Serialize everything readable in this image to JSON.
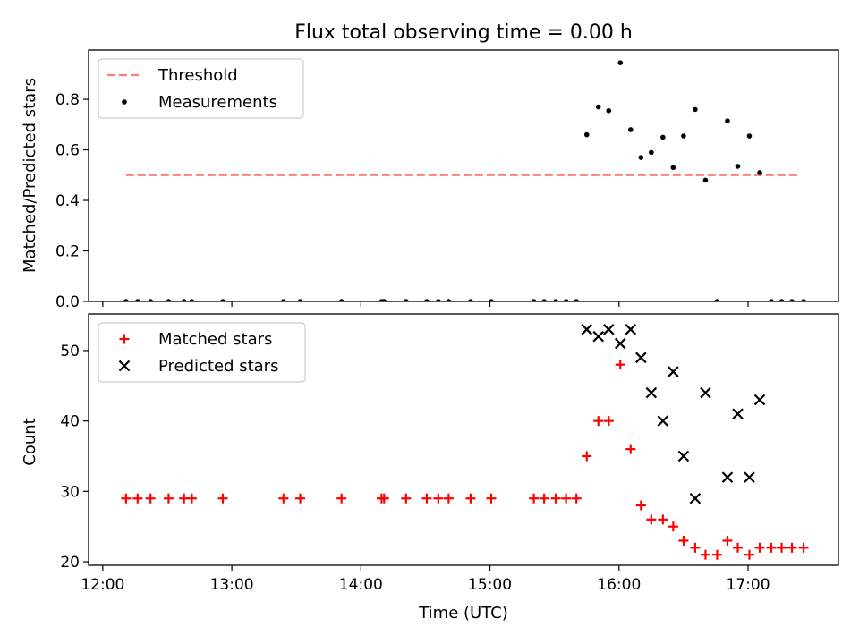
{
  "chart_data": {
    "title": "Flux total observing time = 0.00 h",
    "xlabel": "Time (UTC)",
    "x_unit": "hours UTC",
    "x_ticks": [
      12,
      13,
      14,
      15,
      16,
      17
    ],
    "x_tick_labels": [
      "12:00",
      "13:00",
      "14:00",
      "15:00",
      "16:00",
      "17:00"
    ],
    "xlim": [
      11.89,
      17.7
    ],
    "panels": [
      {
        "type": "scatter",
        "ylabel": "Matched/Predicted stars",
        "ylim": [
          0,
          0.995
        ],
        "y_ticks": [
          0,
          0.2,
          0.4,
          0.6,
          0.8
        ],
        "y_tick_labels": [
          "0.0",
          "0.2",
          "0.4",
          "0.6",
          "0.8"
        ],
        "legend_position": "top-left",
        "lines": [
          {
            "name": "Threshold",
            "style": "dashed",
            "color": "#ff7f7f",
            "x": [
              12.18,
              17.4
            ],
            "y": [
              0.5,
              0.5
            ]
          }
        ],
        "series": [
          {
            "name": "Measurements",
            "marker": "dot",
            "color": "#000000",
            "points": [
              [
                12.18,
                0
              ],
              [
                12.27,
                0
              ],
              [
                12.37,
                0
              ],
              [
                12.51,
                0
              ],
              [
                12.63,
                0
              ],
              [
                12.69,
                0
              ],
              [
                12.93,
                0
              ],
              [
                13.4,
                0
              ],
              [
                13.53,
                0
              ],
              [
                13.85,
                0
              ],
              [
                14.16,
                0
              ],
              [
                14.18,
                0
              ],
              [
                14.35,
                0
              ],
              [
                14.51,
                0
              ],
              [
                14.6,
                0
              ],
              [
                14.68,
                0
              ],
              [
                14.85,
                0
              ],
              [
                15.01,
                0
              ],
              [
                15.34,
                0
              ],
              [
                15.42,
                0
              ],
              [
                15.51,
                0
              ],
              [
                15.59,
                0
              ],
              [
                15.67,
                0
              ],
              [
                15.75,
                0.66
              ],
              [
                15.84,
                0.77
              ],
              [
                15.92,
                0.755
              ],
              [
                16.01,
                0.945
              ],
              [
                16.09,
                0.68
              ],
              [
                16.17,
                0.57
              ],
              [
                16.25,
                0.59
              ],
              [
                16.34,
                0.65
              ],
              [
                16.42,
                0.53
              ],
              [
                16.5,
                0.655
              ],
              [
                16.59,
                0.76
              ],
              [
                16.67,
                0.48
              ],
              [
                16.76,
                0
              ],
              [
                16.84,
                0.715
              ],
              [
                16.92,
                0.535
              ],
              [
                17.01,
                0.655
              ],
              [
                17.09,
                0.51
              ],
              [
                17.18,
                0
              ],
              [
                17.26,
                0
              ],
              [
                17.34,
                0
              ],
              [
                17.43,
                0
              ]
            ]
          }
        ]
      },
      {
        "type": "scatter",
        "ylabel": "Count",
        "ylim": [
          19.5,
          55.2
        ],
        "y_ticks": [
          20,
          30,
          40,
          50
        ],
        "y_tick_labels": [
          "20",
          "30",
          "40",
          "50"
        ],
        "legend_position": "top-left",
        "series": [
          {
            "name": "Matched stars",
            "marker": "plus",
            "color": "#ff0000",
            "points": [
              [
                12.18,
                29
              ],
              [
                12.27,
                29
              ],
              [
                12.37,
                29
              ],
              [
                12.51,
                29
              ],
              [
                12.63,
                29
              ],
              [
                12.69,
                29
              ],
              [
                12.93,
                29
              ],
              [
                13.4,
                29
              ],
              [
                13.53,
                29
              ],
              [
                13.85,
                29
              ],
              [
                14.16,
                29
              ],
              [
                14.18,
                29
              ],
              [
                14.35,
                29
              ],
              [
                14.51,
                29
              ],
              [
                14.6,
                29
              ],
              [
                14.68,
                29
              ],
              [
                14.85,
                29
              ],
              [
                15.01,
                29
              ],
              [
                15.34,
                29
              ],
              [
                15.42,
                29
              ],
              [
                15.51,
                29
              ],
              [
                15.59,
                29
              ],
              [
                15.67,
                29
              ],
              [
                15.75,
                35
              ],
              [
                15.84,
                40
              ],
              [
                15.92,
                40
              ],
              [
                16.01,
                48
              ],
              [
                16.09,
                36
              ],
              [
                16.17,
                28
              ],
              [
                16.25,
                26
              ],
              [
                16.34,
                26
              ],
              [
                16.42,
                25
              ],
              [
                16.5,
                23
              ],
              [
                16.59,
                22
              ],
              [
                16.67,
                21
              ],
              [
                16.76,
                21
              ],
              [
                16.84,
                23
              ],
              [
                16.92,
                22
              ],
              [
                17.01,
                21
              ],
              [
                17.09,
                22
              ],
              [
                17.18,
                22
              ],
              [
                17.26,
                22
              ],
              [
                17.34,
                22
              ],
              [
                17.43,
                22
              ]
            ]
          },
          {
            "name": "Predicted stars",
            "marker": "x",
            "color": "#000000",
            "points": [
              [
                15.75,
                53
              ],
              [
                15.84,
                52
              ],
              [
                15.92,
                53
              ],
              [
                16.01,
                51
              ],
              [
                16.09,
                53
              ],
              [
                16.17,
                49
              ],
              [
                16.25,
                44
              ],
              [
                16.34,
                40
              ],
              [
                16.42,
                47
              ],
              [
                16.5,
                35
              ],
              [
                16.59,
                29
              ],
              [
                16.67,
                44
              ],
              [
                16.84,
                32
              ],
              [
                16.92,
                41
              ],
              [
                17.01,
                32
              ],
              [
                17.09,
                43
              ]
            ]
          }
        ]
      }
    ]
  }
}
